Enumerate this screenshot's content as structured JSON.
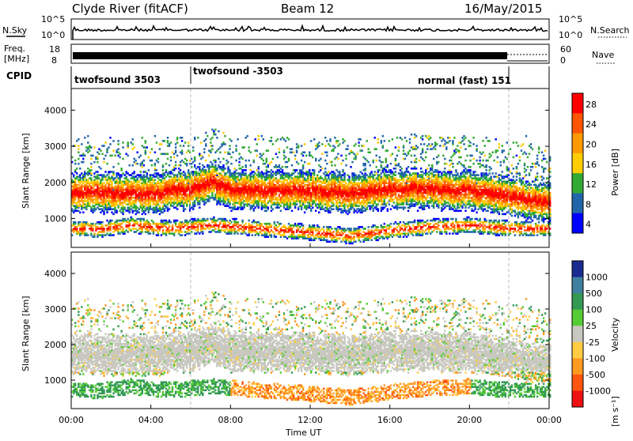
{
  "header": {
    "station": "Clyde River (fitACF)",
    "beam": "Beam 12",
    "date": "16/May/2015"
  },
  "strips": {
    "nsky": {
      "label": "N.Sky",
      "top_tick": "10^5",
      "bottom_tick": "10^0"
    },
    "nsearch": {
      "label": "N.Search",
      "top_tick": "10^5",
      "bottom_tick": "10^0"
    },
    "freq": {
      "label_line1": "Freq.",
      "label_line2": "[MHz]",
      "top_tick": "18",
      "bottom_tick": "8"
    },
    "nave": {
      "label": "Nave",
      "top_tick": "60",
      "bottom_tick": "0"
    },
    "cpid": {
      "label": "CPID",
      "segments": [
        {
          "text": "twofsound 3503",
          "start_hour": 0
        },
        {
          "text": "twofsound -3503",
          "start_hour": 6
        },
        {
          "text": "normal (fast) 151",
          "start_hour": 22
        }
      ],
      "boundaries_hours": [
        6,
        22
      ]
    }
  },
  "colorbars": {
    "power": {
      "label": "Power [dB]",
      "ticks": [
        "28",
        "24",
        "20",
        "16",
        "12",
        "8",
        "4"
      ],
      "colors": [
        "#ff0000",
        "#ff5500",
        "#ff9900",
        "#ffcc00",
        "#33aa33",
        "#2266aa",
        "#0000ff"
      ]
    },
    "velocity": {
      "label": "Velocity",
      "unit": "[m s⁻¹]",
      "ticks": [
        "1000",
        "500",
        "100",
        "25",
        "-25",
        "-100",
        "-500",
        "-1000"
      ],
      "colors": [
        "#1a2b8f",
        "#3f7f9f",
        "#339955",
        "#55cc33",
        "#c8c8c0",
        "#ffcc44",
        "#ff9922",
        "#ff5511",
        "#ee1111"
      ]
    }
  },
  "panels": {
    "power": {
      "ylabel": "Slant Range [km]",
      "yticks": [
        "4000",
        "3000",
        "2000",
        "1000"
      ]
    },
    "velocity": {
      "ylabel": "Slant Range [km]",
      "yticks": [
        "4000",
        "3000",
        "2000",
        "1000"
      ]
    }
  },
  "xaxis": {
    "label": "Time UT",
    "ticks": [
      "00:00",
      "04:00",
      "08:00",
      "12:00",
      "16:00",
      "20:00",
      "00:00"
    ]
  },
  "chart_data": [
    {
      "type": "heatmap",
      "title": "Clyde River (fitACF)",
      "xlabel": "Time UT",
      "ylabel": "Slant Range [km]",
      "xlim_hours": [
        0,
        24
      ],
      "ylim_km": [
        200,
        4600
      ],
      "colorbar": "Power [dB]",
      "colorbar_range": [
        0,
        30
      ],
      "description_of_structure": {
        "main_band_center_km": [
          [
            0,
            1700
          ],
          [
            2,
            1700
          ],
          [
            4,
            1650
          ],
          [
            5,
            1750
          ],
          [
            6,
            1800
          ],
          [
            7,
            2000
          ],
          [
            8,
            1800
          ],
          [
            10,
            1750
          ],
          [
            12,
            1750
          ],
          [
            14,
            1700
          ],
          [
            16,
            1800
          ],
          [
            18,
            1800
          ],
          [
            20,
            1750
          ],
          [
            22,
            1600
          ],
          [
            24,
            1400
          ]
        ],
        "lower_band_center_km": [
          [
            1,
            650
          ],
          [
            3,
            800
          ],
          [
            5,
            700
          ],
          [
            7,
            800
          ],
          [
            12,
            600
          ],
          [
            14,
            500
          ],
          [
            16,
            650
          ],
          [
            18,
            750
          ],
          [
            20,
            800
          ],
          [
            22,
            700
          ],
          [
            24,
            700
          ]
        ]
      }
    },
    {
      "type": "heatmap",
      "title": "Clyde River (fitACF)",
      "xlabel": "Time UT",
      "ylabel": "Slant Range [km]",
      "xlim_hours": [
        0,
        24
      ],
      "ylim_km": [
        200,
        4600
      ],
      "colorbar": "Velocity [m s⁻¹]",
      "colorbar_range": [
        -1000,
        1000
      ]
    }
  ]
}
